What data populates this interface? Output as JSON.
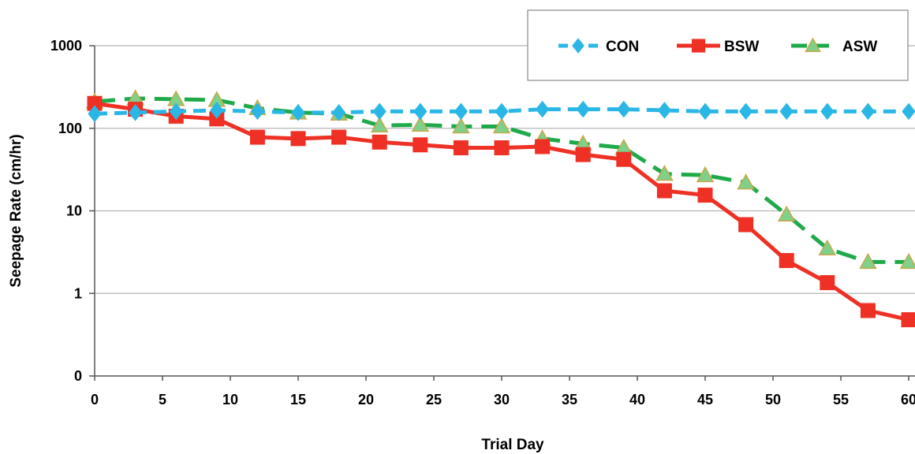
{
  "chart_data": {
    "type": "line",
    "xlabel": "Trial Day",
    "ylabel": "Seepage Rate (cm/hr)",
    "y_scale": "log",
    "xlim": [
      0,
      60
    ],
    "ylim": [
      0.1,
      1000
    ],
    "x_ticks": [
      0,
      5,
      10,
      15,
      20,
      25,
      30,
      35,
      40,
      45,
      50,
      55,
      60
    ],
    "x_tick_labels": [
      "0",
      "5",
      "10",
      "15",
      "20",
      "25",
      "30",
      "35",
      "40",
      "45",
      "50",
      "55",
      "60"
    ],
    "y_ticks": [
      0.1,
      1,
      10,
      100,
      1000
    ],
    "y_tick_labels": [
      "0",
      "1",
      "10",
      "100",
      "1000"
    ],
    "grid": "horizontal",
    "legend_position": "top-right",
    "x": [
      0,
      3,
      6,
      9,
      12,
      15,
      18,
      21,
      24,
      27,
      30,
      33,
      36,
      39,
      42,
      45,
      48,
      51,
      54,
      57,
      60
    ],
    "series": [
      {
        "name": "CON",
        "color": "#2ab7e6",
        "line_style": "dashed",
        "marker": "diamond",
        "values": [
          150,
          155,
          160,
          165,
          160,
          155,
          155,
          160,
          160,
          160,
          160,
          170,
          170,
          170,
          165,
          160,
          160,
          160,
          160,
          160,
          160
        ]
      },
      {
        "name": "BSW",
        "color": "#ee3124",
        "line_style": "solid",
        "marker": "square",
        "values": [
          200,
          170,
          140,
          130,
          78,
          75,
          78,
          68,
          63,
          58,
          58,
          60,
          48,
          42,
          17.5,
          15.5,
          6.8,
          2.5,
          1.35,
          0.62,
          0.48
        ]
      },
      {
        "name": "ASW",
        "color": "#1faa4a",
        "line_style": "dashed",
        "marker": "triangle",
        "values": [
          210,
          230,
          225,
          220,
          175,
          155,
          150,
          108,
          110,
          105,
          105,
          75,
          65,
          58,
          28,
          27,
          22,
          9,
          3.5,
          2.4,
          2.4
        ]
      }
    ]
  }
}
